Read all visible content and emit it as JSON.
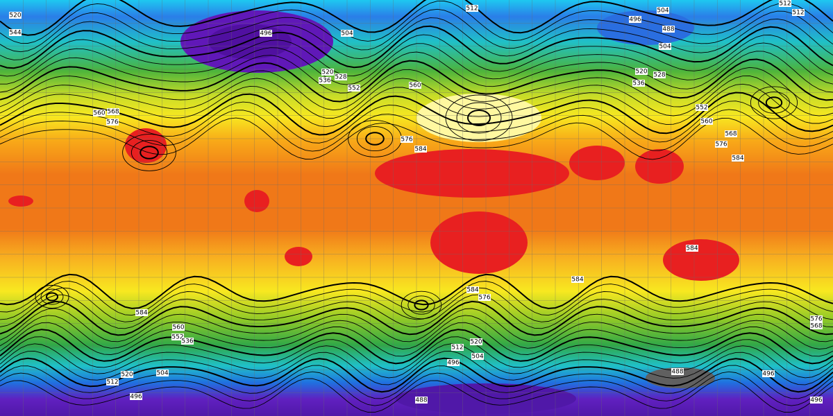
{
  "contour_labels": [
    "512",
    "512",
    "512",
    "504",
    "496",
    "488",
    "504",
    "496",
    "504",
    "520",
    "544",
    "520",
    "528",
    "536",
    "552",
    "560",
    "520",
    "528",
    "536",
    "552",
    "560",
    "568",
    "576",
    "584",
    "560",
    "568",
    "576",
    "576",
    "584",
    "584",
    "584",
    "576",
    "584",
    "560",
    "552",
    "536",
    "512",
    "520",
    "504",
    "496",
    "512",
    "520",
    "504",
    "496",
    "488",
    "496",
    "496",
    "576",
    "568",
    "584",
    "488"
  ]
}
